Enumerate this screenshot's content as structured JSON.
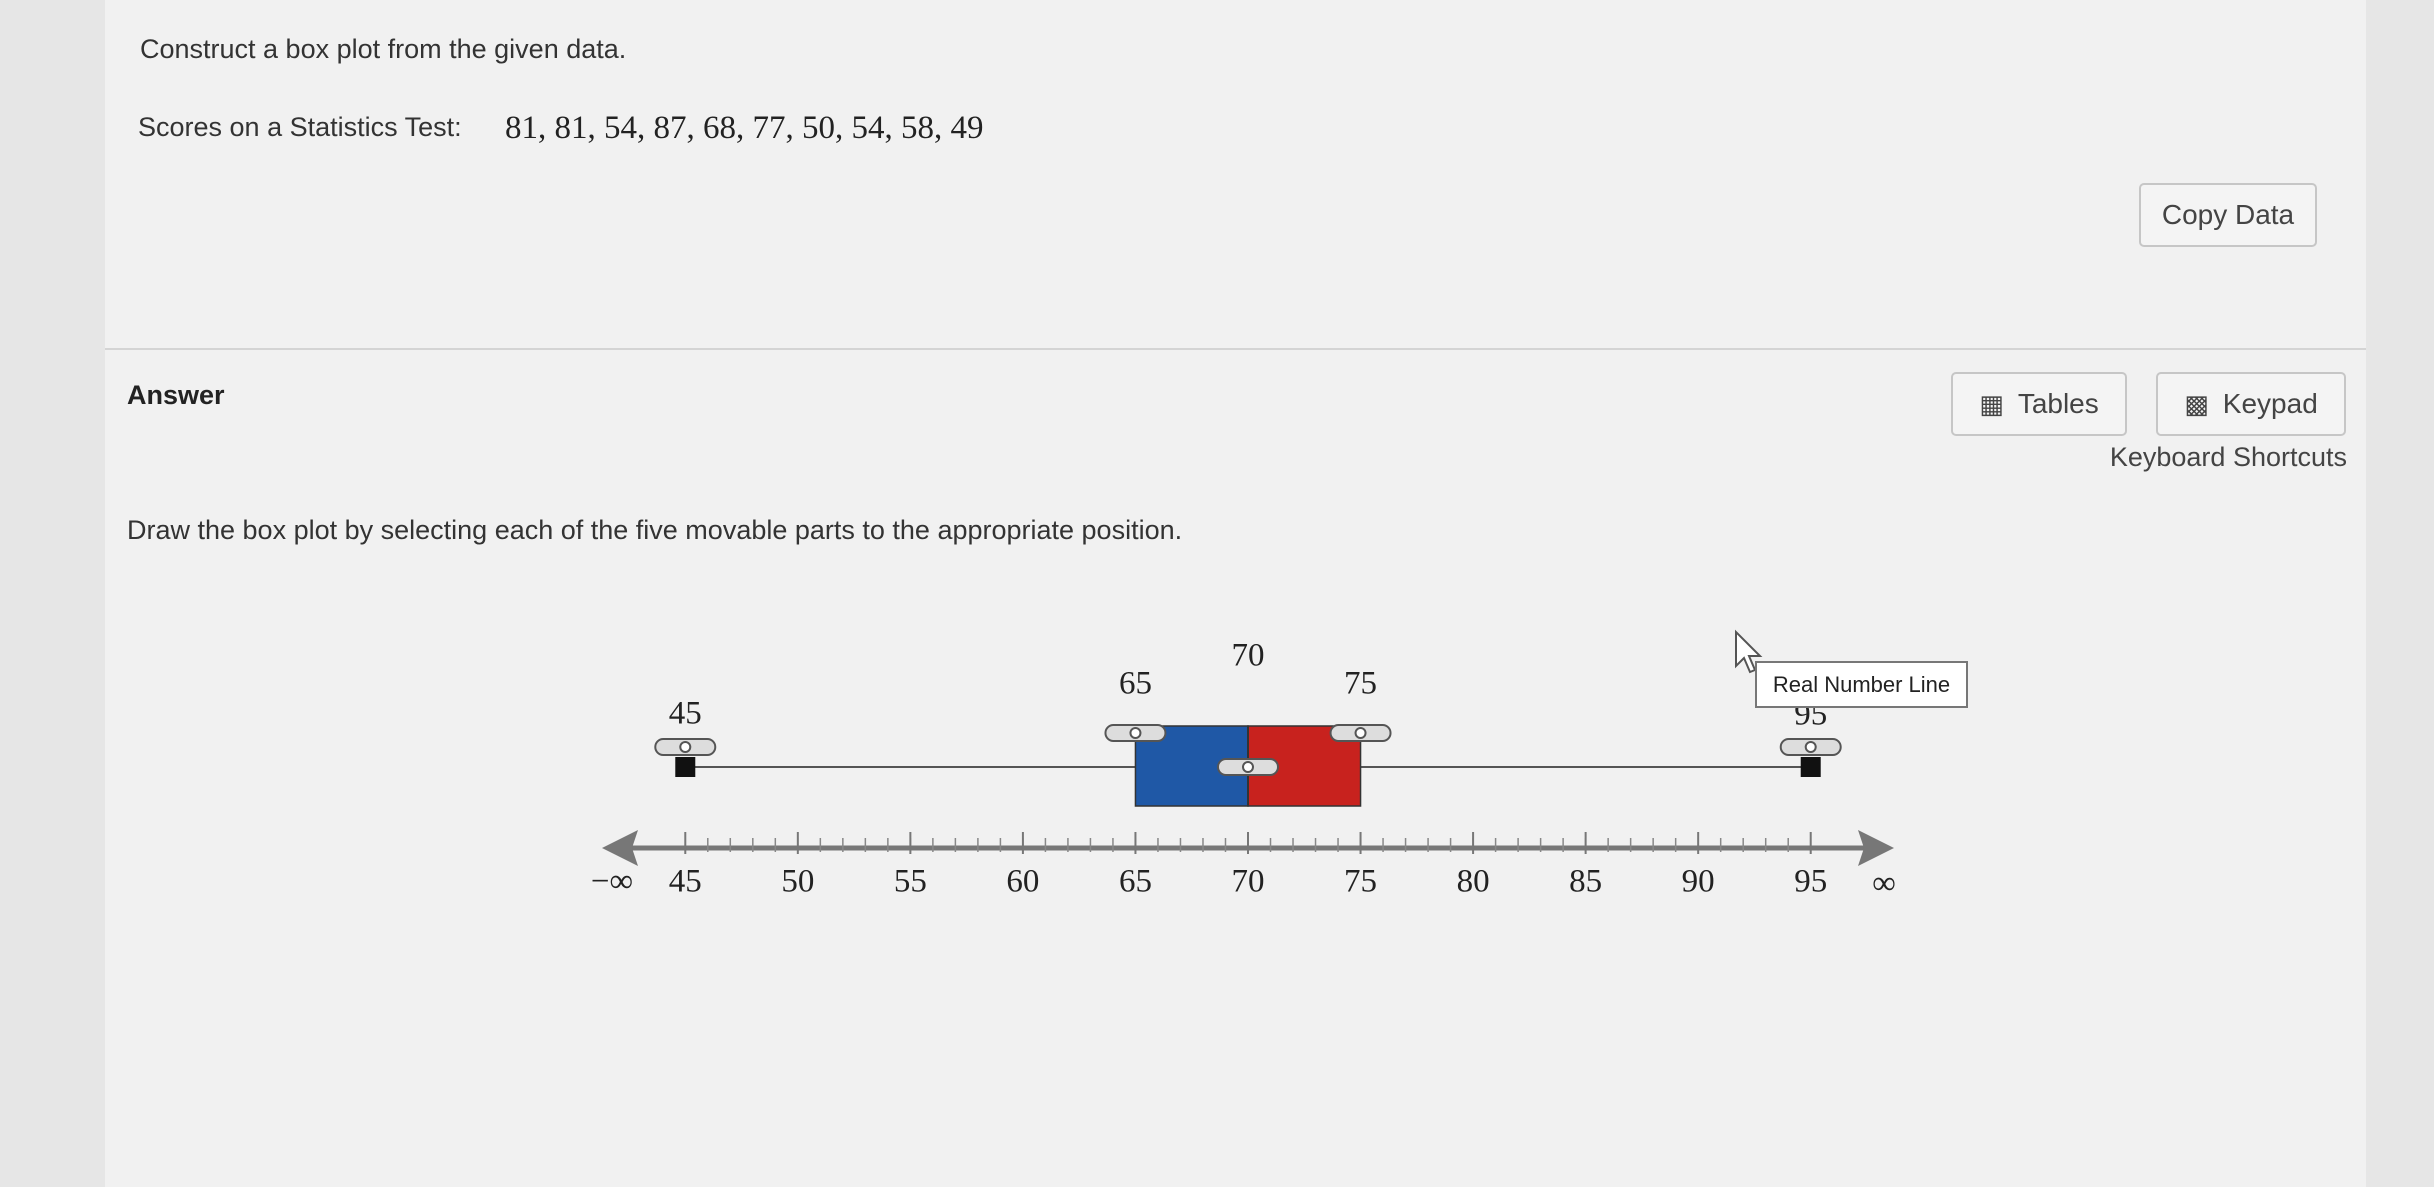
{
  "question": {
    "prompt": "Construct a box plot from the given data.",
    "data_label": "Scores on a Statistics Test:",
    "data": "81, 81, 54, 87, 68, 77, 50, 54, 58, 49"
  },
  "buttons": {
    "copy_data": "Copy Data",
    "tables": "Tables",
    "keypad": "Keypad",
    "keyboard_shortcuts": "Keyboard Shortcuts"
  },
  "answer": {
    "heading": "Answer",
    "instruction": "Draw the box plot by selecting each of the five movable parts to the appropriate position."
  },
  "box_plot": {
    "min": 45,
    "q1": 65,
    "median": 70,
    "q3": 75,
    "max": 95,
    "xlim": [
      41.3,
      98.7
    ],
    "xticks": [
      45,
      50,
      55,
      60,
      65,
      70,
      75,
      80,
      85,
      90,
      95
    ],
    "minor_tick_step": 1,
    "neg_inf_label": "−∞",
    "pos_inf_label": "∞",
    "tooltip": "Real Number Line",
    "q1_color": "#1f58a6",
    "q3_color": "#c8221e"
  }
}
